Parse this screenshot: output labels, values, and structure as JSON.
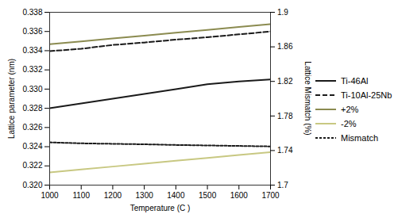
{
  "chart_data": {
    "type": "line",
    "x": [
      1000,
      1100,
      1200,
      1300,
      1400,
      1500,
      1600,
      1700
    ],
    "series": [
      {
        "name": "Ti-46Al",
        "color": "#1a1a1a",
        "line_style": "solid",
        "values": [
          0.328,
          0.3285,
          0.329,
          0.3295,
          0.33,
          0.3305,
          0.3308,
          0.331
        ]
      },
      {
        "name": "Ti-10Al-25Nb",
        "color": "#1a1a1a",
        "line_style": "dashed",
        "values": [
          0.33395,
          0.3342,
          0.3346,
          0.33485,
          0.33515,
          0.3354,
          0.3357,
          0.336
        ]
      },
      {
        "name": "+2%",
        "color": "#8B8B50",
        "line_style": "solid",
        "values": [
          0.33467,
          0.33497,
          0.33527,
          0.33557,
          0.33587,
          0.33617,
          0.33647,
          0.33677
        ]
      },
      {
        "name": "-2%",
        "color": "#C8C882",
        "line_style": "solid",
        "values": [
          0.32133,
          0.32163,
          0.32193,
          0.32223,
          0.32253,
          0.32283,
          0.32313,
          0.32343
        ]
      },
      {
        "name": "Mismatch",
        "color": "#1a1a1a",
        "line_style": "dotted",
        "values": [
          0.32445,
          0.32435,
          0.3243,
          0.32425,
          0.32418,
          0.32413,
          0.32408,
          0.32403
        ]
      }
    ],
    "xlabel": "Temperature (C )",
    "ylabel": "Lattice parameter (nm)",
    "y2label": "Lattice Mismatch (%)",
    "xlim": [
      1000,
      1700
    ],
    "xticks": [
      1000,
      1100,
      1200,
      1300,
      1400,
      1500,
      1600,
      1700
    ],
    "ylim": [
      0.32,
      0.338
    ],
    "yticks": [
      {
        "value": 0.32,
        "label": "0.320"
      },
      {
        "value": 0.322,
        "label": "0.322"
      },
      {
        "value": 0.324,
        "label": "0.324"
      },
      {
        "value": 0.326,
        "label": "0.326"
      },
      {
        "value": 0.328,
        "label": "0.328"
      },
      {
        "value": 0.33,
        "label": "0.330"
      },
      {
        "value": 0.332,
        "label": "0.332"
      },
      {
        "value": 0.334,
        "label": "0.334"
      },
      {
        "value": 0.336,
        "label": "0.336"
      },
      {
        "value": 0.338,
        "label": "0.338"
      }
    ],
    "y2lim": [
      1.7,
      1.9
    ],
    "y2ticks": [
      1.7,
      1.74,
      1.78,
      1.82,
      1.86,
      1.9
    ],
    "grid": false,
    "legend": "right"
  }
}
